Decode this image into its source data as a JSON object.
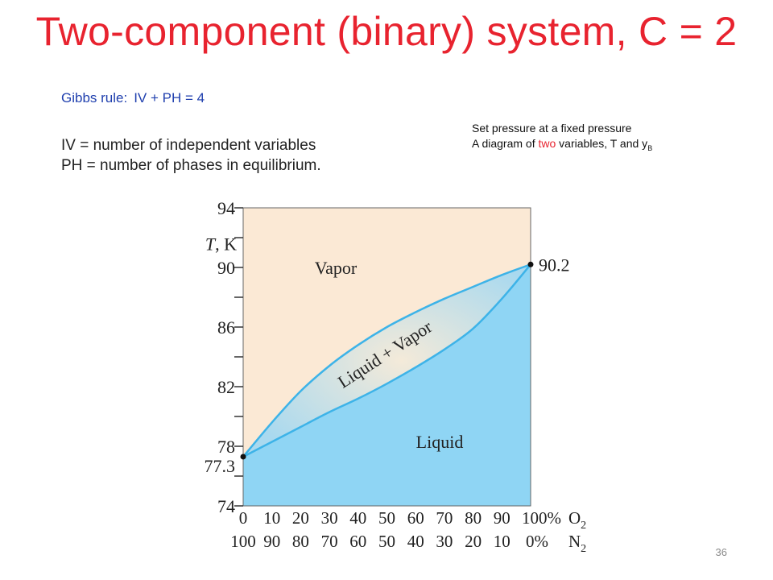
{
  "slide": {
    "title": "Two-component (binary) system, C = 2",
    "gibbs_label": "Gibbs rule:",
    "gibbs_eq": "IV + PH = 4",
    "def_iv": "IV = number of independent variables",
    "def_ph": "PH = number of phases in equilibrium.",
    "note_line1": "Set pressure at a fixed pressure",
    "note_line2_pre": "A diagram of ",
    "note_line2_red": "two",
    "note_line2_post": " variables, T and y",
    "note_line2_sub": "B",
    "page_number": "36"
  },
  "colors": {
    "title": "#e8232f",
    "gibbs": "#1f3fae",
    "vapor_region": "#fbe9d5",
    "liquid_region": "#8fd5f4",
    "curve": "#3db3e8"
  },
  "chart_data": {
    "type": "area",
    "ylabel": "T, K",
    "yticks": [
      "94",
      "90",
      "86",
      "82",
      "78",
      "74"
    ],
    "ylim": [
      74,
      94
    ],
    "x_top_ticks": [
      "0",
      "10",
      "20",
      "30",
      "40",
      "50",
      "60",
      "70",
      "80",
      "90",
      "100%"
    ],
    "x_bottom_ticks": [
      "100",
      "90",
      "80",
      "70",
      "60",
      "50",
      "40",
      "30",
      "20",
      "10",
      "0%"
    ],
    "x_top_species": "O",
    "x_top_species_sub": "2",
    "x_bottom_species": "N",
    "x_bottom_species_sub": "2",
    "xlim": [
      0,
      100
    ],
    "regions": {
      "vapor": "Vapor",
      "two_phase": "Liquid + Vapor",
      "liquid": "Liquid"
    },
    "endpoints": [
      {
        "x": 0,
        "T": 77.3,
        "label": "77.3"
      },
      {
        "x": 100,
        "T": 90.2,
        "label": "90.2"
      }
    ],
    "series": [
      {
        "x": [
          0,
          10,
          20,
          30,
          40,
          50,
          60,
          70,
          80,
          90,
          100
        ],
        "T": [
          77.3,
          79.6,
          81.7,
          83.4,
          84.8,
          86.0,
          87.0,
          87.9,
          88.7,
          89.5,
          90.2
        ]
      },
      {
        "x": [
          0,
          10,
          20,
          30,
          40,
          50,
          60,
          70,
          80,
          90,
          100
        ],
        "T": [
          77.3,
          78.3,
          79.3,
          80.3,
          81.2,
          82.2,
          83.3,
          84.5,
          85.9,
          87.9,
          90.2
        ]
      }
    ]
  }
}
